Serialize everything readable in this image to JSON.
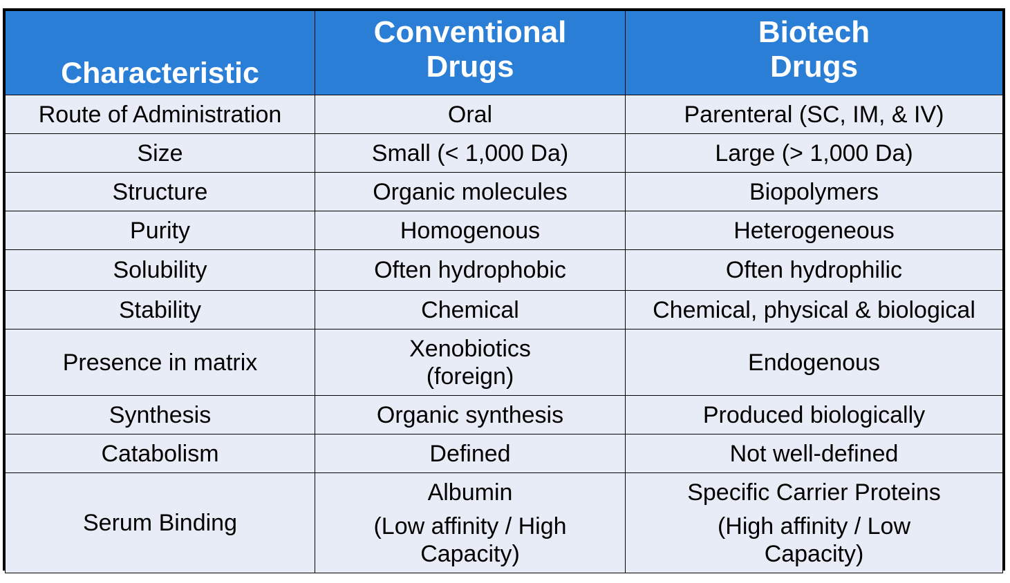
{
  "table": {
    "headers": [
      [
        "Characteristic"
      ],
      [
        "Conventional",
        "Drugs"
      ],
      [
        "Biotech",
        "Drugs"
      ]
    ],
    "rows": [
      {
        "characteristic": [
          "Route of Administration"
        ],
        "conventional": [
          "Oral"
        ],
        "biotech": [
          "Parenteral (SC, IM, & IV)"
        ]
      },
      {
        "characteristic": [
          "Size"
        ],
        "conventional": [
          "Small (< 1,000 Da)"
        ],
        "biotech": [
          "Large (> 1,000 Da)"
        ]
      },
      {
        "characteristic": [
          "Structure"
        ],
        "conventional": [
          "Organic molecules"
        ],
        "biotech": [
          "Biopolymers"
        ]
      },
      {
        "characteristic": [
          "Purity"
        ],
        "conventional": [
          "Homogenous"
        ],
        "biotech": [
          "Heterogeneous"
        ]
      },
      {
        "characteristic": [
          "Solubility"
        ],
        "conventional": [
          "Often hydrophobic"
        ],
        "biotech": [
          "Often hydrophilic"
        ]
      },
      {
        "characteristic": [
          "Stability"
        ],
        "conventional": [
          "Chemical"
        ],
        "biotech": [
          "Chemical, physical & biological"
        ]
      },
      {
        "characteristic": [
          "Presence in matrix"
        ],
        "conventional": [
          "Xenobiotics",
          "(foreign)"
        ],
        "biotech": [
          "Endogenous"
        ]
      },
      {
        "characteristic": [
          "Synthesis"
        ],
        "conventional": [
          "Organic synthesis"
        ],
        "biotech": [
          "Produced biologically"
        ]
      },
      {
        "characteristic": [
          "Catabolism"
        ],
        "conventional": [
          "Defined"
        ],
        "biotech": [
          "Not well-defined"
        ]
      },
      {
        "characteristic": [
          "Serum Binding"
        ],
        "conventional": [
          "Albumin",
          "(Low affinity / High",
          "Capacity)"
        ],
        "biotech": [
          "Specific Carrier Proteins",
          "(High affinity / Low",
          "Capacity)"
        ]
      }
    ]
  },
  "colors": {
    "header_bg": "#2b7ed6",
    "header_text": "#ffffff",
    "cell_bg": "#e8ecf6",
    "border": "#000000"
  }
}
